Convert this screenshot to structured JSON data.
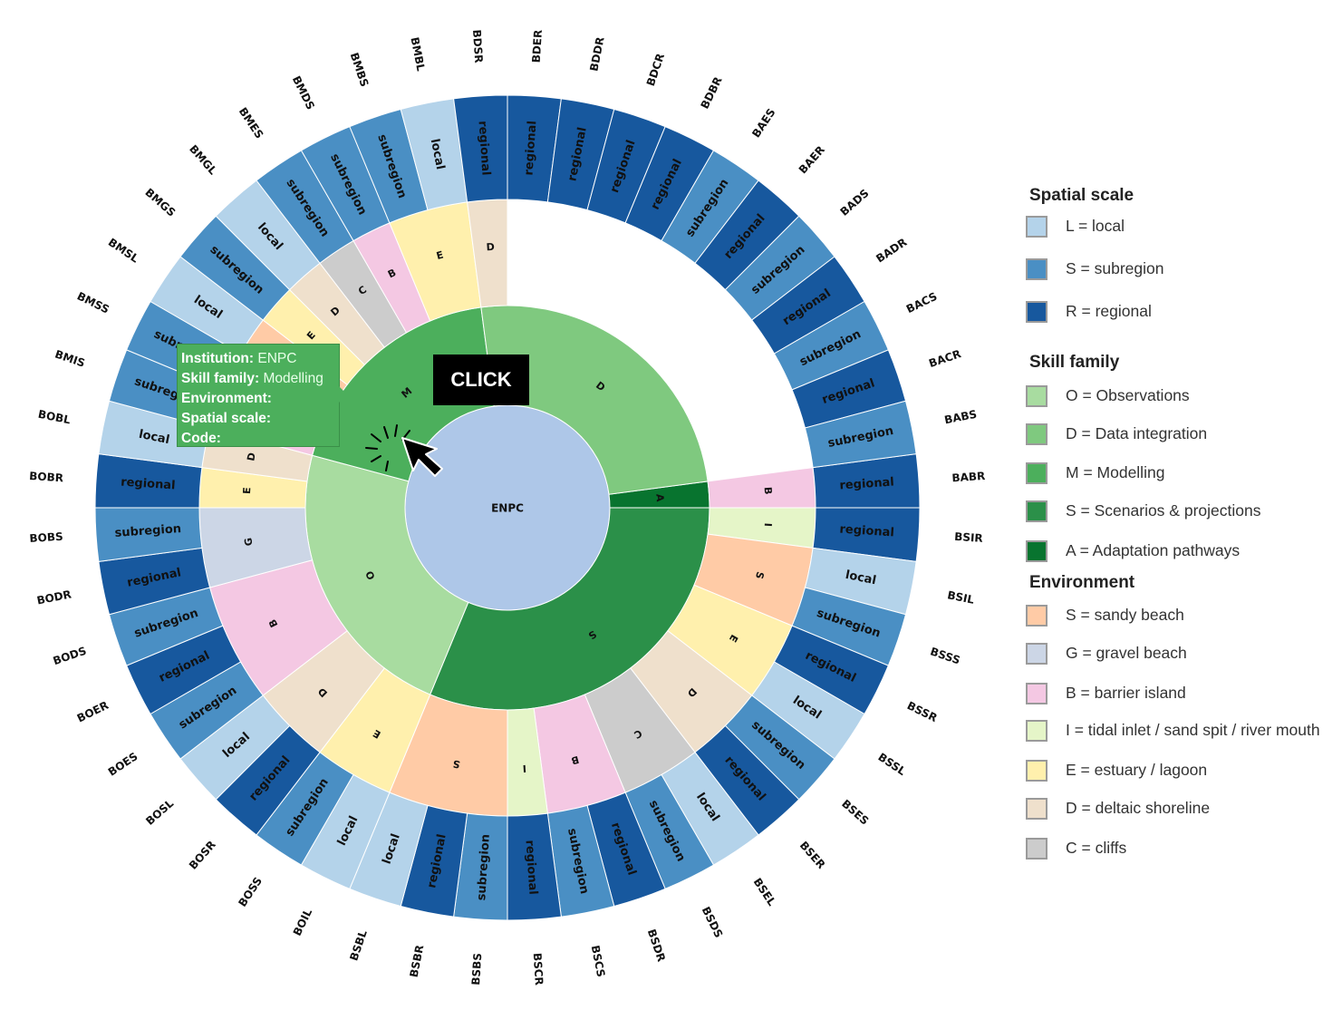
{
  "chart_data": {
    "type": "sunburst",
    "center": {
      "label": "ENPC",
      "color": "#aec7e8"
    },
    "families": [
      {
        "code": "A",
        "color": "#08742f"
      },
      {
        "code": "S",
        "color": "#2b9049"
      },
      {
        "code": "O",
        "color": "#a8dca0"
      },
      {
        "code": "M",
        "color": "#4caf5c"
      },
      {
        "code": "D",
        "color": "#7fc97f"
      }
    ],
    "environments": [
      {
        "code": "B",
        "color": "#f4c8e3"
      },
      {
        "code": "I",
        "color": "#e5f5c8"
      },
      {
        "code": "S",
        "color": "#ffcba6"
      },
      {
        "code": "E",
        "color": "#fff0ad"
      },
      {
        "code": "D",
        "color": "#efe0cc"
      },
      {
        "code": "C",
        "color": "#cccccc"
      },
      {
        "code": "B",
        "color": "#f4c8e3"
      },
      {
        "code": "I",
        "color": "#e5f5c8"
      },
      {
        "code": "S",
        "color": "#ffcba6"
      },
      {
        "code": "E",
        "color": "#fff0ad"
      },
      {
        "code": "D",
        "color": "#efe0cc"
      },
      {
        "code": "B",
        "color": "#f4c8e3"
      },
      {
        "code": "G",
        "color": "#ccd6e6"
      },
      {
        "code": "E",
        "color": "#fff0ad"
      },
      {
        "code": "D",
        "color": "#efe0cc"
      },
      {
        "code": "B",
        "color": "#f4c8e3"
      },
      {
        "code": "S",
        "color": "#ffcba6"
      },
      {
        "code": "E",
        "color": "#fff0ad"
      },
      {
        "code": "D",
        "color": "#efe0cc"
      },
      {
        "code": "C",
        "color": "#cccccc"
      },
      {
        "code": "B",
        "color": "#f4c8e3"
      },
      {
        "code": "E",
        "color": "#fff0ad"
      },
      {
        "code": "D",
        "color": "#efe0cc"
      }
    ],
    "leaves": [
      {
        "code": "BABR",
        "scale": "regional"
      },
      {
        "code": "BSIR",
        "scale": "regional"
      },
      {
        "code": "BSIL",
        "scale": "local"
      },
      {
        "code": "BSSS",
        "scale": "subregion"
      },
      {
        "code": "BSSR",
        "scale": "regional"
      },
      {
        "code": "BSSL",
        "scale": "local"
      },
      {
        "code": "BSES",
        "scale": "subregion"
      },
      {
        "code": "BSER",
        "scale": "regional"
      },
      {
        "code": "BSEL",
        "scale": "local"
      },
      {
        "code": "BSDS",
        "scale": "subregion"
      },
      {
        "code": "BSDR",
        "scale": "regional"
      },
      {
        "code": "BSCS",
        "scale": "subregion"
      },
      {
        "code": "BSCR",
        "scale": "regional"
      },
      {
        "code": "BSBS",
        "scale": "subregion"
      },
      {
        "code": "BSBR",
        "scale": "regional"
      },
      {
        "code": "BSBL",
        "scale": "local"
      },
      {
        "code": "BOIL",
        "scale": "local"
      },
      {
        "code": "BOSS",
        "scale": "subregion"
      },
      {
        "code": "BOSR",
        "scale": "regional"
      },
      {
        "code": "BOSL",
        "scale": "local"
      },
      {
        "code": "BOES",
        "scale": "subregion"
      },
      {
        "code": "BOER",
        "scale": "regional"
      },
      {
        "code": "BODS",
        "scale": "subregion"
      },
      {
        "code": "BODR",
        "scale": "regional"
      },
      {
        "code": "BOBS",
        "scale": "subregion"
      },
      {
        "code": "BOBR",
        "scale": "regional"
      },
      {
        "code": "BOBL",
        "scale": "local"
      },
      {
        "code": "BMIS",
        "scale": "subregion"
      },
      {
        "code": "BMSS",
        "scale": "subregion"
      },
      {
        "code": "BMSL",
        "scale": "local"
      },
      {
        "code": "BMGS",
        "scale": "subregion"
      },
      {
        "code": "BMGL",
        "scale": "local"
      },
      {
        "code": "BMES",
        "scale": "subregion"
      },
      {
        "code": "BMDS",
        "scale": "subregion"
      },
      {
        "code": "BMBS",
        "scale": "subregion"
      },
      {
        "code": "BMBL",
        "scale": "local"
      },
      {
        "code": "BDSR",
        "scale": "regional"
      },
      {
        "code": "BDER",
        "scale": "regional"
      },
      {
        "code": "BDDR",
        "scale": "regional"
      },
      {
        "code": "BDCR",
        "scale": "regional"
      },
      {
        "code": "BDBR",
        "scale": "regional"
      },
      {
        "code": "BAES",
        "scale": "subregion"
      },
      {
        "code": "BAER",
        "scale": "regional"
      },
      {
        "code": "BADS",
        "scale": "subregion"
      },
      {
        "code": "BADR",
        "scale": "regional"
      },
      {
        "code": "BACS",
        "scale": "subregion"
      },
      {
        "code": "BACR",
        "scale": "regional"
      },
      {
        "code": "BABS",
        "scale": "subregion"
      }
    ],
    "scale_colors": {
      "local": "#b4d3ea",
      "subregion": "#4a8fc4",
      "regional": "#17589e"
    }
  },
  "legend": {
    "spatial_scale": {
      "title": "Spatial scale",
      "items": [
        {
          "label": "L = local",
          "color": "#b4d3ea"
        },
        {
          "label": "S = subregion",
          "color": "#4a8fc4"
        },
        {
          "label": "R = regional",
          "color": "#17589e"
        }
      ]
    },
    "skill_family": {
      "title": "Skill family",
      "items": [
        {
          "label": "O = Observations",
          "color": "#a8dca0"
        },
        {
          "label": "D = Data integration",
          "color": "#7fc97f"
        },
        {
          "label": "M = Modelling",
          "color": "#4caf5c"
        },
        {
          "label": "S = Scenarios & projections",
          "color": "#2b9049"
        },
        {
          "label": "A = Adaptation pathways",
          "color": "#08742f"
        }
      ]
    },
    "environment": {
      "title": "Environment",
      "items": [
        {
          "label": "S = sandy beach",
          "color": "#ffcba6"
        },
        {
          "label": "G = gravel beach",
          "color": "#ccd6e6"
        },
        {
          "label": "B = barrier island",
          "color": "#f4c8e3"
        },
        {
          "label": "I = tidal inlet / sand spit / river mouth",
          "color": "#e5f5c8"
        },
        {
          "label": "E = estuary / lagoon",
          "color": "#fff0ad"
        },
        {
          "label": "D = deltaic shoreline",
          "color": "#efe0cc"
        },
        {
          "label": "C = cliffs",
          "color": "#cccccc"
        }
      ]
    }
  },
  "tooltip": {
    "institution_key": "Institution:",
    "institution_val": "ENPC",
    "family_key": "Skill family:",
    "family_val": "Modelling",
    "environment_key": "Environment:",
    "scale_key": "Spatial scale:",
    "code_key": "Code:"
  },
  "annotation": {
    "click_label": "CLICK"
  }
}
